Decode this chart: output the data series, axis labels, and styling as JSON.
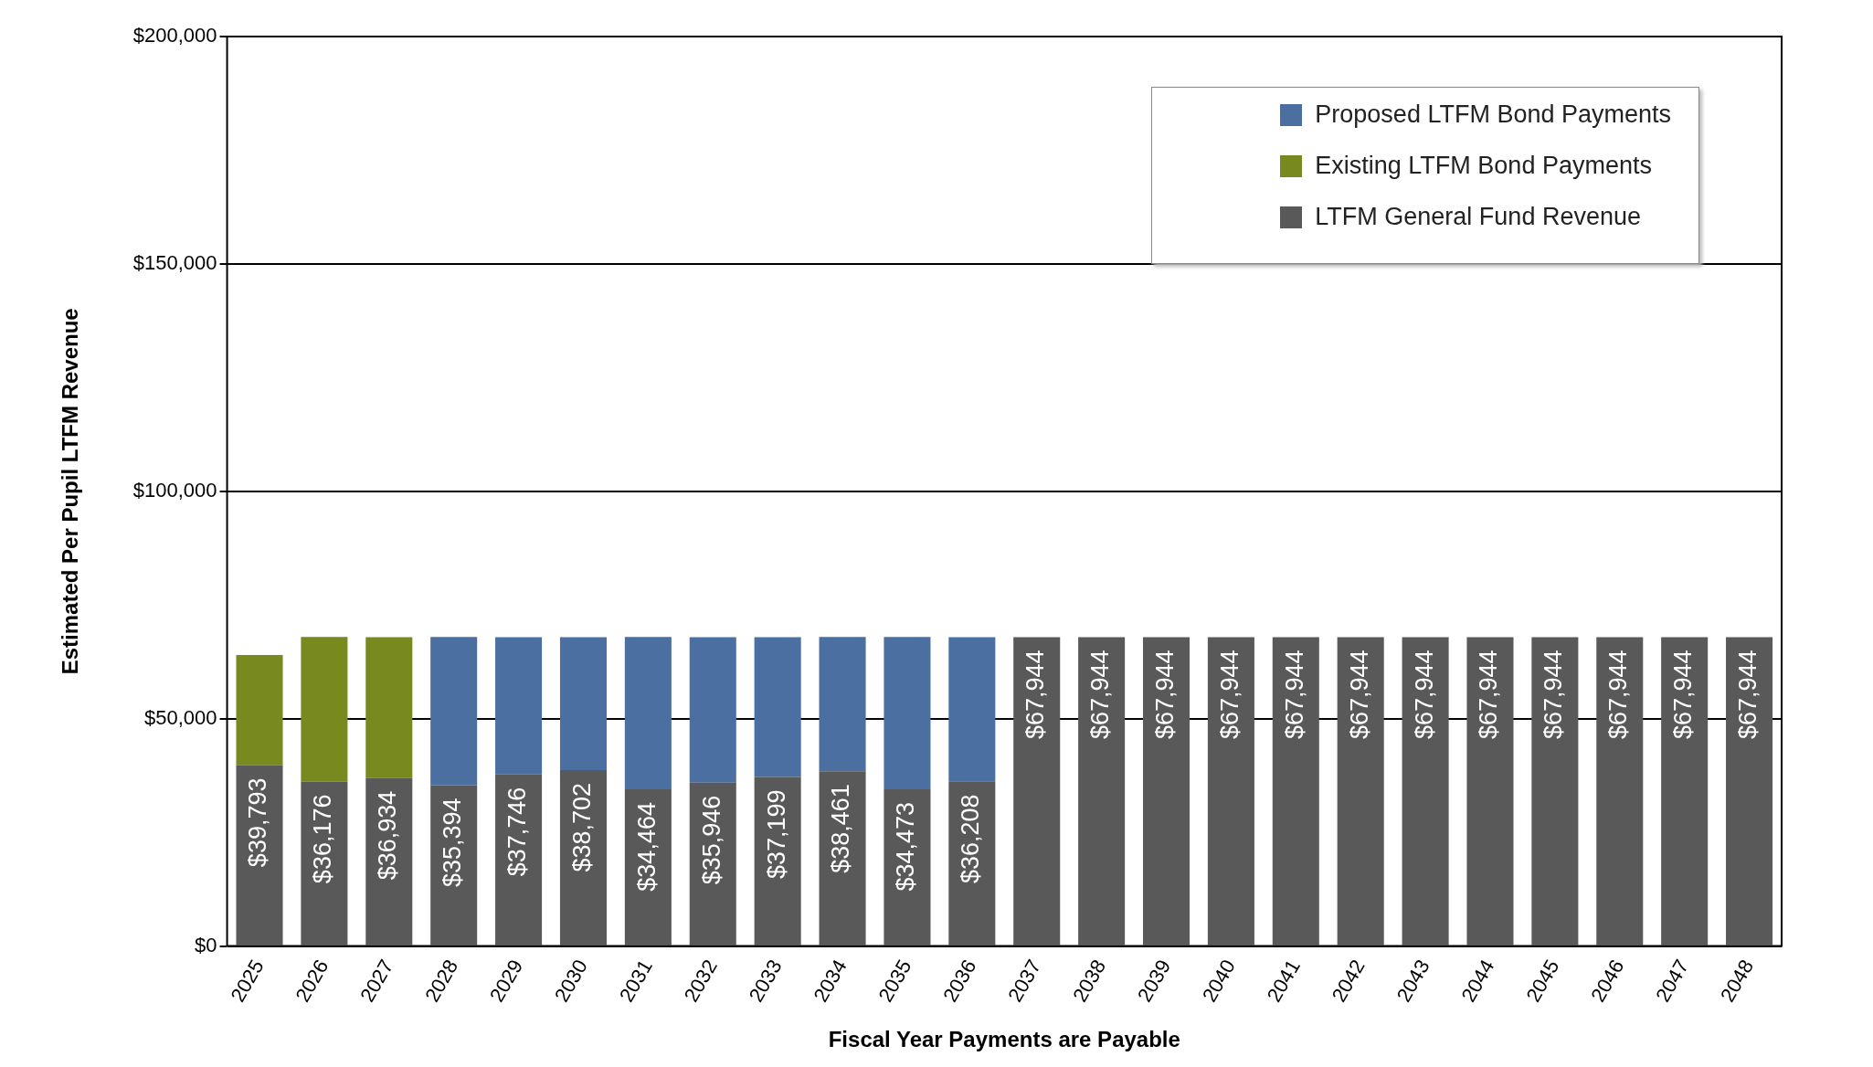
{
  "chart_data": {
    "type": "bar",
    "stacked": true,
    "xlabel": "Fiscal Year Payments are Payable",
    "ylabel": "Estimated Per Pupil LTFM Revenue",
    "categories": [
      "2025",
      "2026",
      "2027",
      "2028",
      "2029",
      "2030",
      "2031",
      "2032",
      "2033",
      "2034",
      "2035",
      "2036",
      "2037",
      "2038",
      "2039",
      "2040",
      "2041",
      "2042",
      "2043",
      "2044",
      "2045",
      "2046",
      "2047",
      "2048"
    ],
    "series": [
      {
        "name": "LTFM General Fund Revenue",
        "color": "#595959",
        "values": [
          39793,
          36176,
          36934,
          35394,
          37746,
          38702,
          34464,
          35946,
          37199,
          38461,
          34473,
          36208,
          67944,
          67944,
          67944,
          67944,
          67944,
          67944,
          67944,
          67944,
          67944,
          67944,
          67944,
          67944
        ],
        "value_labels": [
          "$39,793",
          "$36,176",
          "$36,934",
          "$35,394",
          "$37,746",
          "$38,702",
          "$34,464",
          "$35,946",
          "$37,199",
          "$38,461",
          "$34,473",
          "$36,208",
          "$67,944",
          "$67,944",
          "$67,944",
          "$67,944",
          "$67,944",
          "$67,944",
          "$67,944",
          "$67,944",
          "$67,944",
          "$67,944",
          "$67,944",
          "$67,944"
        ]
      },
      {
        "name": "Existing LTFM Bond Payments",
        "color": "#77891f",
        "values": [
          24200,
          31800,
          31000,
          null,
          null,
          null,
          null,
          null,
          null,
          null,
          null,
          null,
          null,
          null,
          null,
          null,
          null,
          null,
          null,
          null,
          null,
          null,
          null,
          null
        ]
      },
      {
        "name": "Proposed LTFM Bond Payments",
        "color": "#4a6fa0",
        "values": [
          null,
          null,
          null,
          32600,
          30200,
          29200,
          33500,
          32000,
          30700,
          29500,
          33500,
          31700,
          null,
          null,
          null,
          null,
          null,
          null,
          null,
          null,
          null,
          null,
          null,
          null
        ]
      }
    ],
    "ylim": [
      0,
      200000
    ],
    "yticks": [
      {
        "value": 0,
        "label": "$0"
      },
      {
        "value": 50000,
        "label": "$50,000"
      },
      {
        "value": 100000,
        "label": "$100,000"
      },
      {
        "value": 150000,
        "label": "$150,000"
      },
      {
        "value": 200000,
        "label": "$200,000"
      }
    ],
    "grid": "y",
    "legend": "top right"
  }
}
